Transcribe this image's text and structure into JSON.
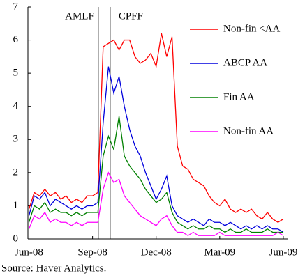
{
  "chart_data": {
    "type": "line",
    "source": "Source: Haver Analytics.",
    "x": [
      0,
      0.25,
      0.5,
      0.75,
      1,
      1.25,
      1.5,
      1.75,
      2,
      2.25,
      2.5,
      2.75,
      3,
      3.25,
      3.5,
      3.75,
      4,
      4.25,
      4.5,
      4.75,
      5,
      5.25,
      5.5,
      5.75,
      6,
      6.25,
      6.5,
      6.75,
      7,
      7.25,
      7.5,
      7.75,
      8,
      8.25,
      8.5,
      8.75,
      9,
      9.25,
      9.5,
      9.75,
      10,
      10.25,
      10.5,
      10.75,
      11,
      11.25,
      11.5,
      11.75,
      12
    ],
    "series": [
      {
        "name": "Non-fin <AA",
        "color": "#ff0000",
        "values": [
          0.9,
          1.4,
          1.3,
          1.5,
          1.3,
          1.4,
          1.2,
          1.3,
          1.1,
          1.2,
          1.1,
          1.3,
          1.3,
          1.4,
          5.8,
          5.9,
          6.0,
          5.7,
          6.0,
          6.0,
          5.5,
          5.3,
          5.4,
          5.6,
          5.2,
          6.2,
          5.5,
          6.1,
          2.8,
          2.2,
          2.1,
          1.8,
          1.7,
          1.6,
          1.3,
          1.1,
          1.0,
          1.2,
          0.9,
          0.8,
          0.9,
          0.8,
          0.9,
          0.7,
          0.6,
          0.8,
          0.6,
          0.5,
          0.6
        ]
      },
      {
        "name": "ABCP AA",
        "color": "#0000dd",
        "values": [
          0.7,
          1.3,
          1.2,
          1.4,
          1.0,
          1.2,
          1.1,
          1.0,
          0.9,
          1.0,
          0.9,
          1.0,
          1.0,
          1.1,
          3.5,
          5.2,
          4.4,
          4.9,
          4.0,
          3.3,
          2.8,
          2.5,
          2.0,
          1.6,
          1.2,
          1.5,
          1.9,
          1.0,
          0.7,
          0.6,
          0.5,
          0.6,
          0.5,
          0.4,
          0.6,
          0.5,
          0.5,
          0.4,
          0.5,
          0.4,
          0.3,
          0.4,
          0.3,
          0.4,
          0.3,
          0.4,
          0.3,
          0.3,
          0.2
        ]
      },
      {
        "name": "Fin AA",
        "color": "#008000",
        "values": [
          0.5,
          1.0,
          0.9,
          1.1,
          0.8,
          0.9,
          0.8,
          0.8,
          0.7,
          0.8,
          0.7,
          0.8,
          0.8,
          0.8,
          2.5,
          3.1,
          2.7,
          3.7,
          2.5,
          2.2,
          2.0,
          1.8,
          1.5,
          1.3,
          1.1,
          1.2,
          1.4,
          0.8,
          0.5,
          0.4,
          0.3,
          0.4,
          0.3,
          0.3,
          0.4,
          0.3,
          0.3,
          0.2,
          0.3,
          0.2,
          0.2,
          0.3,
          0.2,
          0.2,
          0.2,
          0.3,
          0.2,
          0.2,
          0.2
        ]
      },
      {
        "name": "Non-fin AA",
        "color": "#ff00ff",
        "values": [
          0.3,
          0.7,
          0.6,
          0.8,
          0.5,
          0.6,
          0.5,
          0.5,
          0.4,
          0.5,
          0.4,
          0.5,
          0.5,
          0.5,
          1.5,
          2.0,
          1.7,
          1.8,
          1.3,
          1.1,
          0.9,
          0.7,
          0.6,
          0.5,
          0.4,
          0.6,
          0.7,
          0.4,
          0.2,
          0.2,
          0.1,
          0.2,
          0.1,
          0.1,
          0.1,
          0.1,
          0.2,
          0.1,
          0.1,
          0.1,
          0.1,
          0.1,
          0.1,
          0.1,
          0.1,
          0.1,
          0.1,
          0.2,
          0.1
        ]
      }
    ],
    "annotations": [
      {
        "text": "AMLF",
        "x": 3.27
      },
      {
        "text": "CPFF",
        "x": 3.83
      }
    ],
    "xlim": [
      -0.05,
      12.2
    ],
    "xticks": [
      {
        "value": 0,
        "label": "Jun-08"
      },
      {
        "value": 3,
        "label": "Sep-08"
      },
      {
        "value": 6,
        "label": "Dec-08"
      },
      {
        "value": 9,
        "label": "Mar-09"
      },
      {
        "value": 12,
        "label": "Jun-09"
      }
    ],
    "ylim": [
      0,
      7
    ],
    "yticks": [
      0,
      1,
      2,
      3,
      4,
      5,
      6,
      7
    ],
    "grid": false,
    "legend": "top-right"
  }
}
